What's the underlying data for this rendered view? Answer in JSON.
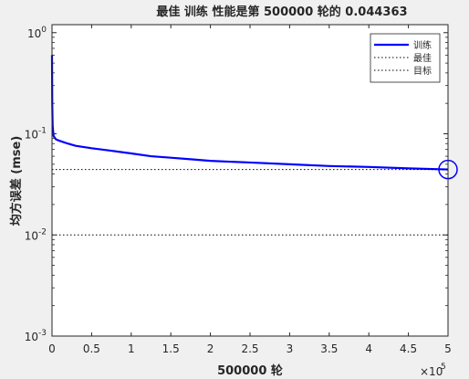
{
  "chart_data": {
    "type": "line",
    "title": "最佳 训练 性能是第 500000 轮的 0.044363",
    "xlabel": "500000 轮",
    "ylabel": "均方误差 (mse)",
    "x_multiplier_label": "×10",
    "x_multiplier_exp": "5",
    "xlim": [
      0,
      5
    ],
    "ylim": [
      0.001,
      1.2
    ],
    "y_scale": "log",
    "x_ticks": [
      0,
      0.5,
      1,
      1.5,
      2,
      2.5,
      3,
      3.5,
      4,
      4.5,
      5
    ],
    "x_tick_labels": [
      "0",
      "0.5",
      "1",
      "1.5",
      "2",
      "2.5",
      "3",
      "3.5",
      "4",
      "4.5",
      "5"
    ],
    "y_ticks": [
      0.001,
      0.01,
      0.1,
      1
    ],
    "y_tick_labels": [
      {
        "base": "10",
        "exp": "-3"
      },
      {
        "base": "10",
        "exp": "-2"
      },
      {
        "base": "10",
        "exp": "-1"
      },
      {
        "base": "10",
        "exp": "0"
      }
    ],
    "series": [
      {
        "name": "训练",
        "color": "#0000ff",
        "style": "solid",
        "x": [
          0,
          0.003,
          0.008,
          0.02,
          0.05,
          0.1,
          0.2,
          0.3,
          0.5,
          0.75,
          1.0,
          1.25,
          1.5,
          1.75,
          2.0,
          2.5,
          3.0,
          3.5,
          4.0,
          4.5,
          5.0
        ],
        "y": [
          0.6,
          0.2,
          0.12,
          0.095,
          0.088,
          0.085,
          0.08,
          0.076,
          0.072,
          0.068,
          0.064,
          0.06,
          0.058,
          0.056,
          0.054,
          0.052,
          0.05,
          0.048,
          0.047,
          0.0455,
          0.0444
        ]
      },
      {
        "name": "最佳",
        "color": "#000000",
        "style": "dotted",
        "x": [
          0,
          5
        ],
        "y": [
          0.044363,
          0.044363
        ]
      },
      {
        "name": "目标",
        "color": "#000000",
        "style": "dotted",
        "x": [
          0,
          5
        ],
        "y": [
          0.01,
          0.01
        ]
      }
    ],
    "vertical_marker": {
      "x": 5,
      "color": "#0000ff",
      "style": "dotted"
    },
    "best_point": {
      "x": 5,
      "y": 0.044363,
      "color": "#0000ff"
    },
    "grid": false,
    "legend_position": "top-right"
  }
}
